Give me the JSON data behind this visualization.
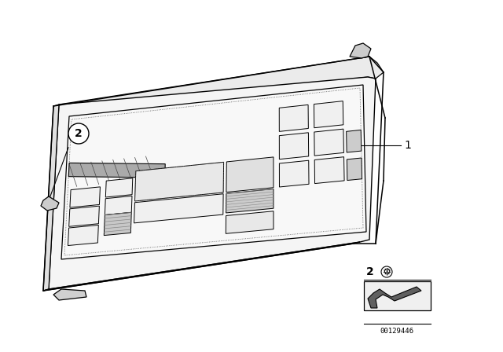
{
  "bg_color": "#ffffff",
  "image_id": "00129446",
  "line_color": "#000000",
  "figsize": [
    6.4,
    4.48
  ],
  "dpi": 100,
  "face_color": "#f8f8f8",
  "top_color": "#eeeeee",
  "side_color": "#e4e4e4",
  "btn_color": "#f0f0f0",
  "dark_color": "#c0c0c0",
  "hatch_color": "#888888"
}
